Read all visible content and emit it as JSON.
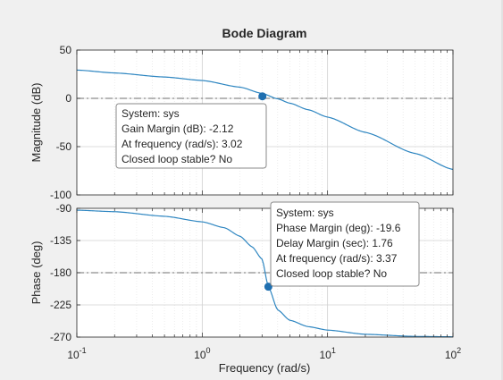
{
  "window": {
    "background": "#f0f0f0"
  },
  "colors": {
    "line": "#2e86c1",
    "marker": "#1f6fb0",
    "axes_bg": "#ffffff",
    "grid": "#e1e1e1",
    "reference_line": "#6f6f6f",
    "text": "#262626",
    "tooltip_border": "#8a8a8a"
  },
  "chart_data": [
    {
      "type": "line",
      "title": "Bode Diagram",
      "xlabel": "Frequency  (rad/s)",
      "ylabel": "Magnitude (dB)",
      "xscale": "log",
      "xlim": [
        0.1,
        100
      ],
      "ylim": [
        -100,
        50
      ],
      "yticks": [
        50,
        0,
        -50,
        -100
      ],
      "ytick_labels": [
        "50",
        "0",
        "-50",
        "-100"
      ],
      "grid": true,
      "reference_line": {
        "value": 0,
        "style": "dash-dot"
      },
      "series": [
        {
          "x": [
            0.1,
            0.2,
            0.5,
            1,
            2,
            3,
            4,
            5,
            7,
            10,
            20,
            50,
            100
          ],
          "y": [
            29.3,
            26.3,
            22.1,
            18.5,
            11.6,
            5.1,
            -0.5,
            -5.0,
            -11.8,
            -19.4,
            -35.2,
            -57.1,
            -73.6
          ]
        }
      ],
      "annotation": {
        "marker": {
          "x": 3.02,
          "y": 2.12
        },
        "lines": [
          "System: sys",
          "Gain Margin (dB): -2.12",
          "At frequency (rad/s): 3.02",
          "Closed loop stable? No"
        ]
      }
    },
    {
      "type": "line",
      "xlabel": "Frequency  (rad/s)",
      "ylabel": "Phase (deg)",
      "xscale": "log",
      "xlim": [
        0.1,
        100
      ],
      "ylim": [
        -270,
        -90
      ],
      "yticks": [
        -90,
        -135,
        -180,
        -225,
        -270
      ],
      "ytick_labels": [
        "-90",
        "-135",
        "-180",
        "-225",
        "-270"
      ],
      "xticks": [
        0.1,
        1,
        10,
        100
      ],
      "xtick_labels": [
        {
          "base": "10",
          "exp": "-1"
        },
        {
          "base": "10",
          "exp": "0"
        },
        {
          "base": "10",
          "exp": "1"
        },
        {
          "base": "10",
          "exp": "2"
        }
      ],
      "grid": true,
      "reference_line": {
        "value": -180,
        "style": "dash-dot"
      },
      "series": [
        {
          "x": [
            0.1,
            0.2,
            0.5,
            1,
            1.5,
            2,
            2.5,
            3,
            3.37,
            4,
            5,
            7,
            10,
            20,
            50,
            100
          ],
          "y": [
            -92.6,
            -94.7,
            -101.1,
            -108.9,
            -117.1,
            -129.0,
            -143.8,
            -161.0,
            -199.6,
            -232.0,
            -246.5,
            -255.4,
            -260.2,
            -266.1,
            -269.1,
            -269.6
          ]
        }
      ],
      "annotation": {
        "marker": {
          "x": 3.37,
          "y": -199.6
        },
        "lines": [
          "System: sys",
          "Phase Margin (deg): -19.6",
          "Delay Margin (sec): 1.76",
          "At frequency (rad/s): 3.37",
          "Closed loop stable? No"
        ]
      }
    }
  ]
}
